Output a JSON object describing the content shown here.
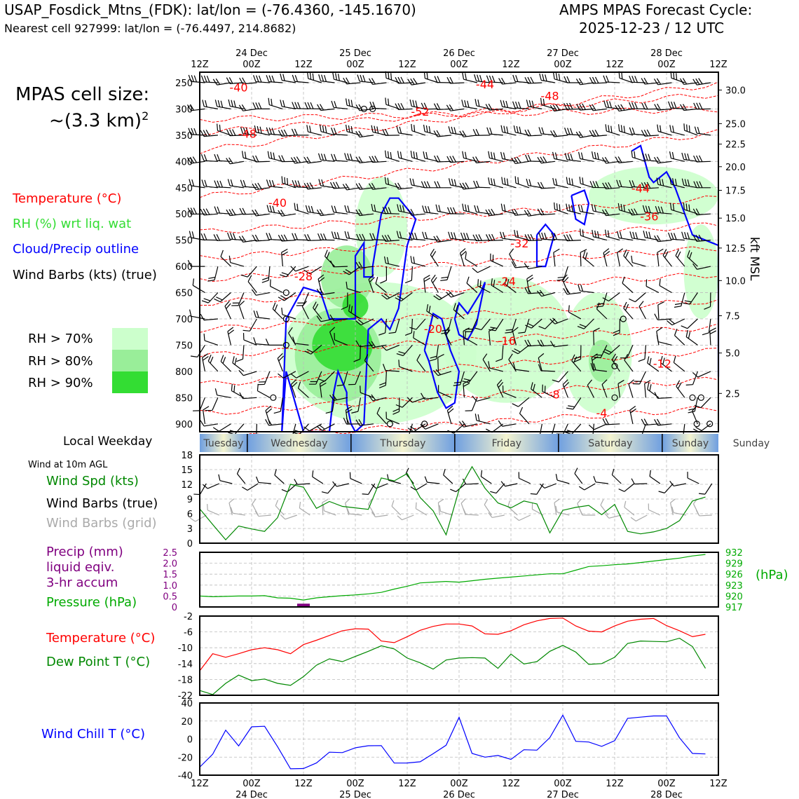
{
  "header": {
    "station_line": "USAP_Fosdick_Mtns_(FDK): lat/lon = (-76.4360, -145.1670)",
    "cell_line": "Nearest cell 927999: lat/lon = (-76.4497, 214.8682)",
    "cycle_title": "AMPS MPAS Forecast Cycle:",
    "cycle_date": "2025-12-23 / 12 UTC"
  },
  "legend": {
    "cell_size_label": "MPAS cell size:",
    "cell_size_value": "~(3.3 km)",
    "cell_size_exp": "2",
    "temperature": "Temperature (°C)",
    "rh": "RH (%) wrt liq. wat",
    "cloud": "Cloud/Precip outline",
    "wind_barbs": "Wind Barbs (kts) (true)",
    "rh70": "RH > 70%",
    "rh80": "RH > 80%",
    "rh90": "RH > 90%",
    "local_weekday": "Local Weekday",
    "wind_10m": "Wind at 10m AGL",
    "wind_spd": "Wind Spd (kts)",
    "wind_barbs_true": "Wind Barbs (true)",
    "wind_barbs_grid": "Wind Barbs (grid)",
    "precip_1": "Precip (mm)",
    "precip_2": "liquid eqiv.",
    "precip_3": "3-hr accum",
    "pressure": "Pressure (hPa)",
    "hpa_unit": "(hPa)",
    "temp2": "Temperature (°C)",
    "dewpoint": "Dew Point T (°C)",
    "windchill": "Wind Chill T (°C)",
    "kft_label": "kft MSL"
  },
  "colors": {
    "temp": "#ff0000",
    "rh_text": "#33dd33",
    "cloud": "#0000ff",
    "pressure": "#00aa00",
    "dew": "#008800",
    "precip": "#800080",
    "grey_barb": "#aaaaaa",
    "rh70": "#ccffcc",
    "rh80": "#99ee99",
    "rh90": "#33dd33"
  },
  "chart_data": [
    {
      "type": "heatmap",
      "name": "time-height cross section",
      "x_ticks_hours": [
        "12Z",
        "00Z",
        "12Z",
        "00Z",
        "12Z",
        "00Z",
        "12Z",
        "00Z",
        "12Z",
        "00Z",
        "12Z"
      ],
      "x_date_labels": [
        "24 Dec",
        "25 Dec",
        "26 Dec",
        "27 Dec",
        "28 Dec"
      ],
      "x_range_hours": [
        0,
        120
      ],
      "pressure_ticks": [
        250,
        300,
        350,
        400,
        450,
        500,
        550,
        600,
        650,
        700,
        750,
        800,
        850,
        900
      ],
      "pressure_range": [
        230,
        915
      ],
      "kft_ticks": [
        {
          "label": "30.0",
          "p": 264
        },
        {
          "label": "25.0",
          "p": 328
        },
        {
          "label": "22.5",
          "p": 367
        },
        {
          "label": "20.0",
          "p": 410
        },
        {
          "label": "17.5",
          "p": 455
        },
        {
          "label": "15.0",
          "p": 508
        },
        {
          "label": "12.5",
          "p": 565
        },
        {
          "label": "10.0",
          "p": 627
        },
        {
          "label": "7.5",
          "p": 694
        },
        {
          "label": "5.0",
          "p": 765
        },
        {
          "label": "2.5",
          "p": 842
        }
      ],
      "temp_contour_labels": [
        {
          "text": "-40",
          "x": 4.5,
          "p": 260
        },
        {
          "text": "-44",
          "x": 33,
          "p": 254
        },
        {
          "text": "-48",
          "x": 40.5,
          "p": 276
        },
        {
          "text": "-52",
          "x": 25.5,
          "p": 306
        },
        {
          "text": "-48",
          "x": 5.5,
          "p": 348
        },
        {
          "text": "-40",
          "x": 9,
          "p": 480
        },
        {
          "text": "-44",
          "x": 51,
          "p": 452
        },
        {
          "text": "-36",
          "x": 52,
          "p": 506
        },
        {
          "text": "-32",
          "x": 37,
          "p": 557
        },
        {
          "text": "-28",
          "x": 12,
          "p": 620
        },
        {
          "text": "-24",
          "x": 35.5,
          "p": 629
        },
        {
          "text": "-20",
          "x": 27,
          "p": 720
        },
        {
          "text": "-16",
          "x": 35.5,
          "p": 743
        },
        {
          "text": "-12",
          "x": 53.5,
          "p": 786
        },
        {
          "text": "-8",
          "x": 41,
          "p": 845
        },
        {
          "text": "-4",
          "x": 46.5,
          "p": 880
        }
      ],
      "temp_isotherms": [
        {
          "value": -52,
          "p_start": 320,
          "p_end": 300
        },
        {
          "value": -48,
          "p_start": 345,
          "p_end": 272
        },
        {
          "value": -44,
          "p_start": 380,
          "p_end": 252
        },
        {
          "value": -40,
          "p_start": 468,
          "p_end": 345
        },
        {
          "value": -36,
          "p_start": 535,
          "p_end": 470
        },
        {
          "value": -32,
          "p_start": 585,
          "p_end": 520
        },
        {
          "value": -28,
          "p_start": 625,
          "p_end": 565
        },
        {
          "value": -24,
          "p_start": 670,
          "p_end": 615
        },
        {
          "value": -20,
          "p_start": 720,
          "p_end": 665
        },
        {
          "value": -16,
          "p_start": 770,
          "p_end": 715
        },
        {
          "value": -12,
          "p_start": 825,
          "p_end": 760
        },
        {
          "value": -8,
          "p_start": 880,
          "p_end": 815
        },
        {
          "value": -4,
          "p_start": 930,
          "p_end": 870
        }
      ],
      "rh_patches": [
        {
          "level": 70,
          "x0": 9.5,
          "x1": 32,
          "p0": 630,
          "p1": 900
        },
        {
          "level": 70,
          "x0": 18,
          "x1": 24,
          "p0": 430,
          "p1": 620
        },
        {
          "level": 70,
          "x0": 28,
          "x1": 43,
          "p0": 620,
          "p1": 860
        },
        {
          "level": 70,
          "x0": 42,
          "x1": 50,
          "p0": 650,
          "p1": 880
        },
        {
          "level": 70,
          "x0": 45,
          "x1": 60,
          "p0": 410,
          "p1": 520
        },
        {
          "level": 70,
          "x0": 56,
          "x1": 60,
          "p0": 520,
          "p1": 700
        },
        {
          "level": 80,
          "x0": 11,
          "x1": 21,
          "p0": 680,
          "p1": 860
        },
        {
          "level": 80,
          "x0": 14,
          "x1": 20,
          "p0": 560,
          "p1": 680
        },
        {
          "level": 80,
          "x0": 45,
          "x1": 48,
          "p0": 740,
          "p1": 820
        },
        {
          "level": 90,
          "x0": 13,
          "x1": 20,
          "p0": 700,
          "p1": 800
        },
        {
          "level": 90,
          "x0": 16.5,
          "x1": 19.5,
          "p0": 650,
          "p1": 700
        }
      ],
      "cloud_outlines": [
        {
          "x": [
            9.5,
            10,
            12,
            14,
            15,
            17,
            18,
            18,
            19,
            19,
            20,
            20,
            21,
            22,
            23,
            24,
            25,
            24,
            23,
            22,
            21,
            19.5,
            19,
            18,
            17.5,
            17,
            17,
            16,
            15.5,
            15,
            12,
            10,
            9.5
          ],
          "p": [
            920,
            700,
            640,
            650,
            700,
            700,
            700,
            580,
            555,
            620,
            620,
            600,
            500,
            470,
            470,
            490,
            510,
            560,
            680,
            720,
            700,
            720,
            900,
            930,
            900,
            860,
            840,
            800,
            840,
            920,
            920,
            800,
            920
          ]
        },
        {
          "x": [
            26,
            27,
            28,
            29,
            30,
            29.5,
            28.5,
            27.5,
            26.5,
            26
          ],
          "p": [
            760,
            690,
            700,
            760,
            800,
            860,
            870,
            840,
            780,
            760
          ]
        },
        {
          "x": [
            29.5,
            30,
            31,
            32.5,
            33,
            32,
            31,
            30,
            29.5
          ],
          "p": [
            700,
            670,
            690,
            650,
            630,
            710,
            740,
            730,
            700
          ]
        },
        {
          "x": [
            39,
            40,
            41,
            40,
            39,
            39
          ],
          "p": [
            540,
            520,
            540,
            600,
            600,
            540
          ]
        },
        {
          "x": [
            43,
            44.5,
            45,
            44.5,
            43.5,
            43
          ],
          "p": [
            465,
            455,
            480,
            520,
            510,
            465
          ]
        },
        {
          "x": [
            50,
            51,
            52,
            52.5,
            54,
            55,
            57,
            60,
            60
          ],
          "p": [
            380,
            370,
            430,
            440,
            420,
            450,
            540,
            560,
            810
          ]
        }
      ],
      "wind_barbs": "barbs at every 3 h, 50 hPa spacing; westerly 10–35 kt aloft, variable below 650 hPa"
    },
    {
      "type": "line",
      "name": "10 m wind speed",
      "ylabel": "kts",
      "ylim": [
        0,
        18
      ],
      "y_ticks": [
        0,
        3,
        6,
        9,
        12,
        15,
        18
      ],
      "x_step_hours": 3,
      "values": [
        7.0,
        3.8,
        0.7,
        3.5,
        2.9,
        2.4,
        5.2,
        12.0,
        11.4,
        7.1,
        8.5,
        7.5,
        7.2,
        6.9,
        13.3,
        12.7,
        14.2,
        9.3,
        6.6,
        1.7,
        10.9,
        15.6,
        11.2,
        8.2,
        7.2,
        8.6,
        8.0,
        2.1,
        6.7,
        7.3,
        7.7,
        5.8,
        7.9,
        2.4,
        1.9,
        2.3,
        3.0,
        4.6,
        8.6,
        9.4
      ]
    },
    {
      "type": "bar",
      "name": "3-hr precip",
      "ylabel": "mm",
      "ylim": [
        0,
        2.5
      ],
      "y_ticks": [
        "0",
        "0.5",
        "1.0",
        "1.5",
        "2.0",
        "2.5"
      ],
      "x_step_hours": 3,
      "values": [
        0,
        0,
        0,
        0,
        0,
        0,
        0,
        0.02,
        0.15,
        0,
        0,
        0,
        0,
        0,
        0,
        0,
        0,
        0,
        0,
        0,
        0,
        0,
        0,
        0,
        0,
        0,
        0,
        0,
        0,
        0,
        0,
        0,
        0,
        0,
        0,
        0,
        0,
        0,
        0,
        0
      ]
    },
    {
      "type": "line",
      "name": "pressure",
      "ylabel": "hPa",
      "ylim": [
        917,
        932
      ],
      "y_ticks": [
        917,
        920,
        923,
        926,
        929,
        932
      ],
      "x_step_hours": 3,
      "values": [
        920.0,
        919.8,
        919.9,
        920.0,
        920.0,
        920.1,
        919.5,
        919.4,
        918.9,
        919.5,
        919.8,
        920.1,
        920.3,
        920.6,
        921.0,
        921.9,
        922.7,
        923.6,
        923.8,
        924.0,
        923.8,
        924.2,
        924.6,
        924.9,
        925.2,
        925.5,
        925.8,
        926.1,
        926.1,
        927.1,
        928.1,
        928.3,
        928.6,
        928.8,
        929.2,
        929.6,
        930.0,
        930.4,
        931.0,
        931.4
      ]
    },
    {
      "type": "line",
      "name": "temperature and dew point",
      "ylabel": "°C",
      "ylim": [
        -22,
        -2
      ],
      "y_ticks": [
        -2,
        -6,
        -10,
        -14,
        -18,
        -22
      ],
      "x_step_hours": 3,
      "series": [
        {
          "name": "Temperature (°C)",
          "values": [
            -15.8,
            -11.5,
            -12.4,
            -11.5,
            -10.5,
            -10.0,
            -10.5,
            -11.5,
            -9.2,
            -8.1,
            -6.9,
            -5.7,
            -5.2,
            -5.3,
            -8.3,
            -8.7,
            -7.2,
            -5.6,
            -4.6,
            -4.0,
            -4.0,
            -4.5,
            -6.5,
            -6.6,
            -5.7,
            -4.2,
            -3.2,
            -2.6,
            -2.5,
            -4.5,
            -5.8,
            -6.0,
            -4.5,
            -3.3,
            -2.8,
            -2.6,
            -4.4,
            -5.7,
            -7.2,
            -6.6
          ]
        },
        {
          "name": "Dew Point T (°C)",
          "values": [
            -20.8,
            -21.8,
            -19.0,
            -16.9,
            -18.3,
            -17.9,
            -19.0,
            -19.5,
            -17.3,
            -14.4,
            -12.8,
            -13.5,
            -12.2,
            -10.9,
            -9.5,
            -10.3,
            -12.6,
            -13.8,
            -15.4,
            -13.1,
            -12.6,
            -12.5,
            -12.6,
            -15.2,
            -11.6,
            -14.1,
            -13.5,
            -10.9,
            -9.4,
            -11.1,
            -14.2,
            -14.0,
            -12.4,
            -8.9,
            -8.3,
            -8.4,
            -8.5,
            -7.6,
            -9.7,
            -15.2
          ]
        }
      ]
    },
    {
      "type": "line",
      "name": "wind chill",
      "ylabel": "°C",
      "ylim": [
        -40,
        40
      ],
      "y_ticks": [
        -40,
        -20,
        0,
        20,
        40
      ],
      "x_step_hours": 3,
      "values": [
        -31.1,
        -16.7,
        9.9,
        -7.5,
        13.6,
        14.2,
        -8.4,
        -32.9,
        -32.6,
        -26.5,
        -14.5,
        -15.0,
        -9.6,
        -7.4,
        -7.2,
        -26.6,
        -26.5,
        -25.2,
        -16.2,
        -6.8,
        24.1,
        -15.9,
        -20.0,
        -18.2,
        -22.5,
        -11.8,
        -12.3,
        1.6,
        26.5,
        -2.5,
        -3.3,
        -8.1,
        -1.8,
        23.0,
        24.3,
        25.6,
        25.6,
        1.4,
        -15.9,
        -16.5
      ]
    }
  ],
  "weekdays": {
    "labels": [
      "Tuesday",
      "Wednesday",
      "Thursday",
      "Friday",
      "Saturday",
      "Sunday"
    ],
    "boundaries_hours": [
      11,
      35,
      59,
      83,
      107
    ]
  }
}
